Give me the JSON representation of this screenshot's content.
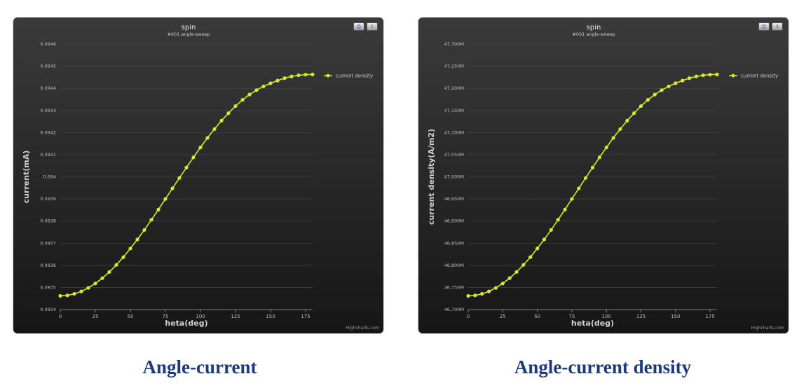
{
  "captions": {
    "left": "Angle-current",
    "right": "Angle-current density"
  },
  "toolbar": {
    "print_label": "⎙",
    "export_label": "⇩"
  },
  "credits": "Highcharts.com",
  "colors": {
    "series": "#d8e82a",
    "grid": "#4a4a4a",
    "text": "#cfcfcf"
  },
  "chart_data": [
    {
      "type": "line",
      "title": "spin",
      "subtitle": "#001 angle-sweep",
      "xlabel": "heta(deg)",
      "ylabel": "current(mA)",
      "xlim": [
        0,
        180
      ],
      "ylim": [
        0.0934,
        0.0946
      ],
      "xticks": [
        0,
        25,
        50,
        75,
        100,
        125,
        150,
        175
      ],
      "yticks": [
        0.0934,
        0.0935,
        0.0936,
        0.0937,
        0.0938,
        0.0939,
        0.094,
        0.0941,
        0.0942,
        0.0943,
        0.0944,
        0.0945,
        0.0946
      ],
      "ytick_labels": [
        "0.0934",
        "0.0935",
        "0.0936",
        "0.0937",
        "0.0938",
        "0.0939",
        "0.094",
        "0.0941",
        "0.0942",
        "0.0943",
        "0.0944",
        "0.0945",
        "0.0946"
      ],
      "legend_position": "top-right",
      "series": [
        {
          "name": "current density",
          "x": [
            0,
            5,
            10,
            15,
            20,
            25,
            30,
            35,
            40,
            45,
            50,
            55,
            60,
            65,
            70,
            75,
            80,
            85,
            90,
            95,
            100,
            105,
            110,
            115,
            120,
            125,
            130,
            135,
            140,
            145,
            150,
            155,
            160,
            165,
            170,
            175,
            180
          ],
          "y": [
            0.093462,
            0.093464,
            0.093471,
            0.093482,
            0.093498,
            0.093518,
            0.093542,
            0.09357,
            0.093602,
            0.093637,
            0.093676,
            0.093717,
            0.09376,
            0.093806,
            0.093852,
            0.0939,
            0.093948,
            0.093995,
            0.094042,
            0.094088,
            0.094133,
            0.094176,
            0.094216,
            0.094254,
            0.094288,
            0.09432,
            0.094348,
            0.094372,
            0.094392,
            0.094409,
            0.094423,
            0.094435,
            0.094446,
            0.094454,
            0.094459,
            0.094462,
            0.094463
          ]
        }
      ]
    },
    {
      "type": "line",
      "title": "spin",
      "subtitle": "#001 angle-sweep",
      "xlabel": "heta(deg)",
      "ylabel": "current density(A/m2)",
      "xlim": [
        0,
        180
      ],
      "ylim": [
        46700000,
        47300000
      ],
      "xticks": [
        0,
        25,
        50,
        75,
        100,
        125,
        150,
        175
      ],
      "yticks": [
        46700000,
        46750000,
        46800000,
        46850000,
        46900000,
        46950000,
        47000000,
        47050000,
        47100000,
        47150000,
        47200000,
        47250000,
        47300000
      ],
      "ytick_labels": [
        "46,700M",
        "46,750M",
        "46,800M",
        "46,850M",
        "46,900M",
        "46,950M",
        "47,000M",
        "47,050M",
        "47,100M",
        "47,150M",
        "47,200M",
        "47,250M",
        "47,300M"
      ],
      "legend_position": "top-right",
      "series": [
        {
          "name": "current density",
          "x": [
            0,
            5,
            10,
            15,
            20,
            25,
            30,
            35,
            40,
            45,
            50,
            55,
            60,
            65,
            70,
            75,
            80,
            85,
            90,
            95,
            100,
            105,
            110,
            115,
            120,
            125,
            130,
            135,
            140,
            145,
            150,
            155,
            160,
            165,
            170,
            175,
            180
          ],
          "y": [
            46731000,
            46732000,
            46735500,
            46741000,
            46749000,
            46759000,
            46771000,
            46785000,
            46801000,
            46818500,
            46838000,
            46858500,
            46880000,
            46903000,
            46926000,
            46950000,
            46974000,
            46997500,
            47021000,
            47044000,
            47066500,
            47088000,
            47108000,
            47127000,
            47144000,
            47160000,
            47174000,
            47186000,
            47196000,
            47204500,
            47211500,
            47217500,
            47223000,
            47227000,
            47229500,
            47231000,
            47231500
          ]
        }
      ]
    }
  ]
}
